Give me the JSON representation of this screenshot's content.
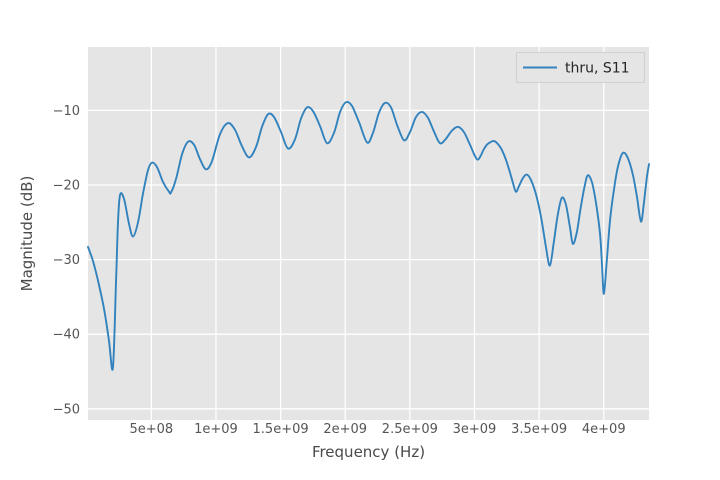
{
  "chart_data": {
    "type": "line",
    "title": "",
    "xlabel": "Frequency (Hz)",
    "ylabel": "Magnitude (dB)",
    "xlim_hz": [
      10000000,
      4350000000
    ],
    "ylim_db": [
      -51.5,
      -1.5
    ],
    "grid": true,
    "legend_position": "upper right",
    "x_ticks": [
      {
        "value_ghz": 0.5,
        "label": "5e+08"
      },
      {
        "value_ghz": 1.0,
        "label": "1e+09"
      },
      {
        "value_ghz": 1.5,
        "label": "1.5e+09"
      },
      {
        "value_ghz": 2.0,
        "label": "2e+09"
      },
      {
        "value_ghz": 2.5,
        "label": "2.5e+09"
      },
      {
        "value_ghz": 3.0,
        "label": "3e+09"
      },
      {
        "value_ghz": 3.5,
        "label": "3.5e+09"
      },
      {
        "value_ghz": 4.0,
        "label": "4e+09"
      }
    ],
    "y_ticks": [
      {
        "value_db": -10,
        "label": "−10"
      },
      {
        "value_db": -20,
        "label": "−20"
      },
      {
        "value_db": -30,
        "label": "−30"
      },
      {
        "value_db": -40,
        "label": "−40"
      },
      {
        "value_db": -50,
        "label": "−50"
      }
    ],
    "series": [
      {
        "name": "thru, S11",
        "color": "#3182bd",
        "x_ghz": [
          0.01,
          0.049,
          0.087,
          0.134,
          0.172,
          0.203,
          0.227,
          0.242,
          0.258,
          0.289,
          0.327,
          0.358,
          0.397,
          0.435,
          0.474,
          0.505,
          0.544,
          0.59,
          0.637,
          0.652,
          0.691,
          0.737,
          0.784,
          0.83,
          0.876,
          0.923,
          0.969,
          1.031,
          1.093,
          1.147,
          1.201,
          1.256,
          1.31,
          1.356,
          1.403,
          1.449,
          1.503,
          1.557,
          1.611,
          1.658,
          1.704,
          1.751,
          1.805,
          1.859,
          1.913,
          1.96,
          2.006,
          2.052,
          2.107,
          2.169,
          2.215,
          2.261,
          2.308,
          2.354,
          2.4,
          2.455,
          2.501,
          2.547,
          2.594,
          2.64,
          2.686,
          2.733,
          2.779,
          2.826,
          2.872,
          2.918,
          2.965,
          3.003,
          3.027,
          3.05,
          3.073,
          3.096,
          3.119,
          3.15,
          3.181,
          3.212,
          3.243,
          3.274,
          3.297,
          3.32,
          3.343,
          3.374,
          3.405,
          3.436,
          3.475,
          3.514,
          3.552,
          3.583,
          3.614,
          3.645,
          3.676,
          3.707,
          3.738,
          3.761,
          3.792,
          3.823,
          3.854,
          3.877,
          3.908,
          3.939,
          3.971,
          3.986,
          4.001,
          4.024,
          4.048,
          4.079,
          4.11,
          4.148,
          4.187,
          4.226,
          4.257,
          4.288,
          4.311,
          4.334,
          4.35
        ],
        "y_db": [
          -28.3,
          -30.2,
          -32.8,
          -36.6,
          -40.8,
          -44.5,
          -33.0,
          -25.0,
          -21.3,
          -21.9,
          -25.2,
          -26.9,
          -25.0,
          -21.2,
          -18.0,
          -17.0,
          -17.6,
          -19.6,
          -20.9,
          -21.0,
          -19.2,
          -15.9,
          -14.2,
          -14.6,
          -16.5,
          -17.9,
          -16.8,
          -13.2,
          -11.7,
          -12.6,
          -14.8,
          -16.3,
          -14.9,
          -12.2,
          -10.5,
          -10.9,
          -12.9,
          -15.1,
          -13.9,
          -11.1,
          -9.6,
          -10.1,
          -12.1,
          -14.4,
          -13.0,
          -10.2,
          -8.9,
          -9.4,
          -11.6,
          -14.3,
          -13.0,
          -10.3,
          -9.0,
          -9.6,
          -11.9,
          -14.0,
          -12.9,
          -10.9,
          -10.2,
          -11.0,
          -12.8,
          -14.4,
          -13.8,
          -12.7,
          -12.2,
          -12.9,
          -14.6,
          -16.1,
          -16.6,
          -16.0,
          -15.2,
          -14.6,
          -14.3,
          -14.1,
          -14.5,
          -15.3,
          -16.6,
          -18.3,
          -19.7,
          -20.9,
          -20.2,
          -19.1,
          -18.6,
          -19.3,
          -21.2,
          -24.2,
          -28.2,
          -30.8,
          -27.6,
          -23.9,
          -21.7,
          -22.6,
          -25.6,
          -27.9,
          -26.3,
          -22.9,
          -20.0,
          -18.7,
          -19.6,
          -22.3,
          -26.5,
          -30.5,
          -34.6,
          -30.0,
          -24.8,
          -20.6,
          -17.5,
          -15.7,
          -16.4,
          -18.7,
          -21.6,
          -24.9,
          -22.3,
          -18.9,
          -17.2
        ]
      }
    ]
  },
  "colors": {
    "figure_bg": "#ffffff",
    "plot_bg": "#e5e5e5",
    "grid": "#ffffff",
    "trace": "#3182bd",
    "tick_text": "#555555",
    "axis_label_text": "#4a4a4a",
    "legend_bg": "#e5e5e5",
    "legend_border": "#d0d0d0",
    "legend_text": "#262626"
  }
}
